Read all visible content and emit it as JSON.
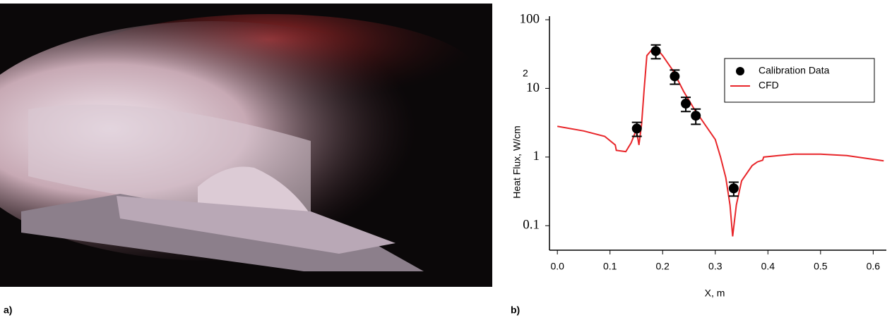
{
  "figure_labels": [
    "a)",
    "b)"
  ],
  "chart_data": {
    "type": "line",
    "xlabel": "X, m",
    "ylabel": "Heat Flux, W/cm",
    "ylabel_superscript": "2",
    "ylog": true,
    "xlim": [
      -0.015,
      0.625
    ],
    "ylim": [
      0.044,
      100
    ],
    "xticks": [
      {
        "value": 0,
        "label": "0.0"
      },
      0.1,
      0.2,
      0.3,
      0.4,
      0.5,
      0.6
    ],
    "yticks": [
      0.1,
      1,
      10,
      100
    ],
    "legend": "upper right",
    "series": [
      {
        "name": "Calibration Data",
        "color": "#000000",
        "marker": "circle",
        "x": [
          0.151,
          0.187,
          0.223,
          0.244,
          0.263,
          0.335
        ],
        "values": [
          2.6,
          35,
          15,
          6,
          4,
          0.35
        ],
        "errors": [
          0.6,
          8,
          3.5,
          1.4,
          1,
          0.08
        ]
      },
      {
        "name": "CFD",
        "color": "#e8262a",
        "x": [
          0,
          0.05,
          0.09,
          0.11,
          0.112,
          0.13,
          0.14,
          0.15,
          0.155,
          0.16,
          0.165,
          0.17,
          0.18,
          0.19,
          0.2,
          0.22,
          0.24,
          0.26,
          0.28,
          0.3,
          0.31,
          0.32,
          0.328,
          0.333,
          0.34,
          0.35,
          0.37,
          0.38,
          0.39,
          0.392,
          0.42,
          0.45,
          0.5,
          0.55,
          0.62
        ],
        "values": [
          2.8,
          2.4,
          2.0,
          1.5,
          1.25,
          1.2,
          1.6,
          2.5,
          1.5,
          3.0,
          10,
          30,
          37,
          37,
          30,
          18,
          9,
          5,
          3,
          1.8,
          1.0,
          0.5,
          0.2,
          0.07,
          0.2,
          0.45,
          0.75,
          0.85,
          0.9,
          1.0,
          1.05,
          1.1,
          1.1,
          1.05,
          0.88
        ]
      }
    ]
  }
}
